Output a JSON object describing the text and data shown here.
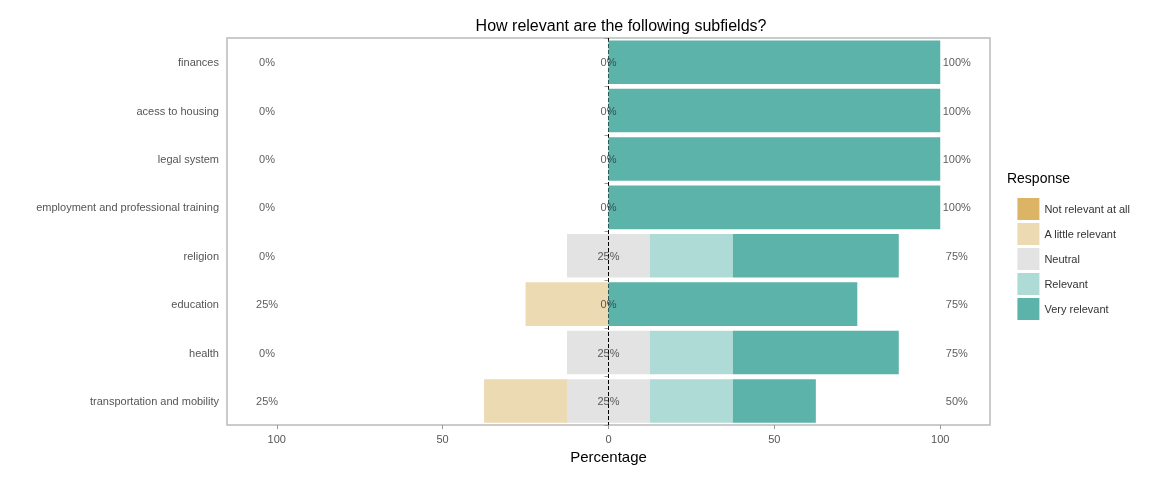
{
  "chart_data": {
    "type": "bar",
    "orientation": "horizontal",
    "title": "How relevant are the following subfields?",
    "xlabel": "Percentage",
    "legend_title": "Response",
    "legend": "right",
    "grid": false,
    "categories": [
      "finances",
      "acess to housing",
      "legal system",
      "employment and professional training",
      "religion",
      "education",
      "health",
      "transportation and mobility"
    ],
    "xlim": [
      -115,
      115
    ],
    "xticks": [
      {
        "value": -100,
        "label": "100"
      },
      {
        "value": -50,
        "label": "50"
      },
      0,
      50,
      100
    ],
    "series": [
      {
        "name": "Not relevant at all",
        "color": "#dbb466",
        "base": [
          null,
          null,
          null,
          null,
          null,
          null,
          null,
          null
        ],
        "values": [
          0,
          0,
          0,
          0,
          0,
          0,
          0,
          0
        ]
      },
      {
        "name": "A little relevant",
        "color": "#ebdab2",
        "base": [
          null,
          null,
          null,
          null,
          null,
          -25,
          null,
          -37.5
        ],
        "values": [
          0,
          0,
          0,
          0,
          0,
          25,
          0,
          25
        ]
      },
      {
        "name": "Neutral",
        "color": "#e3e3e3",
        "base": [
          null,
          null,
          null,
          null,
          -12.5,
          null,
          -12.5,
          -12.5
        ],
        "values": [
          0,
          0,
          0,
          0,
          25,
          0,
          25,
          25
        ]
      },
      {
        "name": "Relevant",
        "color": "#afdbd6",
        "base": [
          null,
          null,
          null,
          null,
          12.5,
          null,
          12.5,
          12.5
        ],
        "values": [
          0,
          0,
          0,
          0,
          25,
          0,
          25,
          25
        ]
      },
      {
        "name": "Very relevant",
        "color": "#5bb3a9",
        "base": [
          0,
          0,
          0,
          0,
          37.5,
          0,
          37.5,
          37.5
        ],
        "values": [
          100,
          100,
          100,
          100,
          50,
          75,
          50,
          25
        ]
      }
    ],
    "ref_lines": [
      {
        "axis": "x",
        "value": 0,
        "color": "#000000",
        "line_style": "dashed"
      }
    ],
    "annotations": [
      "0%",
      "0%",
      "100%",
      "0%",
      "0%",
      "100%",
      "0%",
      "0%",
      "100%",
      "0%",
      "0%",
      "100%",
      "0%",
      "25%",
      "75%",
      "25%",
      "0%",
      "75%",
      "0%",
      "25%",
      "75%",
      "25%",
      "25%",
      "50%"
    ]
  }
}
